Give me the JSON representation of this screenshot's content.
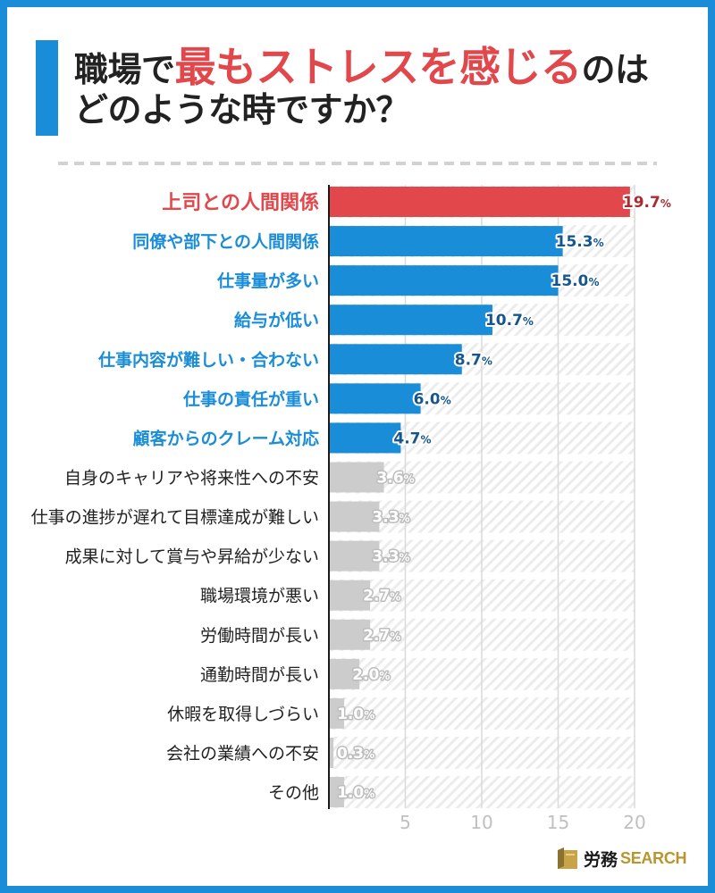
{
  "colors": {
    "frame": "#1a8dd8",
    "title_accent": "#1a8dd8",
    "title_text": "#222222",
    "title_highlight": "#e2474b",
    "category_text": "#222222",
    "axis_tick": "#c0c0c0",
    "logo_gold": "#b8962e"
  },
  "chart_data": {
    "type": "bar",
    "orientation": "horizontal",
    "title": {
      "line1_prefix": "職場で",
      "line1_highlight": "最もストレスを感じる",
      "line1_suffix": "のは",
      "line2": "どのような時ですか？"
    },
    "categories": [
      "上司との人間関係",
      "同僚や部下との人間関係",
      "仕事量が多い",
      "給与が低い",
      "仕事内容が難しい・合わない",
      "仕事の責任が重い",
      "顧客からのクレーム対応",
      "自身のキャリアや将来性への不安",
      "仕事の進捗が遅れて目標達成が難しい",
      "成果に対して賞与や昇給が少ない",
      "職場環境が悪い",
      "労働時間が長い",
      "通勤時間が長い",
      "休暇を取得しづらい",
      "会社の業績への不安",
      "その他"
    ],
    "values": [
      19.7,
      15.3,
      15.0,
      10.7,
      8.7,
      6.0,
      4.7,
      3.6,
      3.3,
      3.3,
      2.7,
      2.7,
      2.0,
      1.0,
      0.3,
      1.0
    ],
    "value_suffix": "%",
    "bar_color_keys": [
      "red",
      "blue",
      "blue",
      "blue",
      "blue",
      "blue",
      "blue",
      "gray",
      "gray",
      "gray",
      "gray",
      "gray",
      "gray",
      "gray",
      "gray",
      "gray"
    ],
    "palette": {
      "red": "#e2474b",
      "blue": "#1a8dd8",
      "gray": "#cccccc"
    },
    "xlim": [
      0,
      20
    ],
    "xticks": [
      5,
      10,
      15,
      20
    ],
    "grid": true
  },
  "logo": {
    "icon": "book-icon",
    "text_jp": "労務",
    "text_en": "SEARCH"
  }
}
